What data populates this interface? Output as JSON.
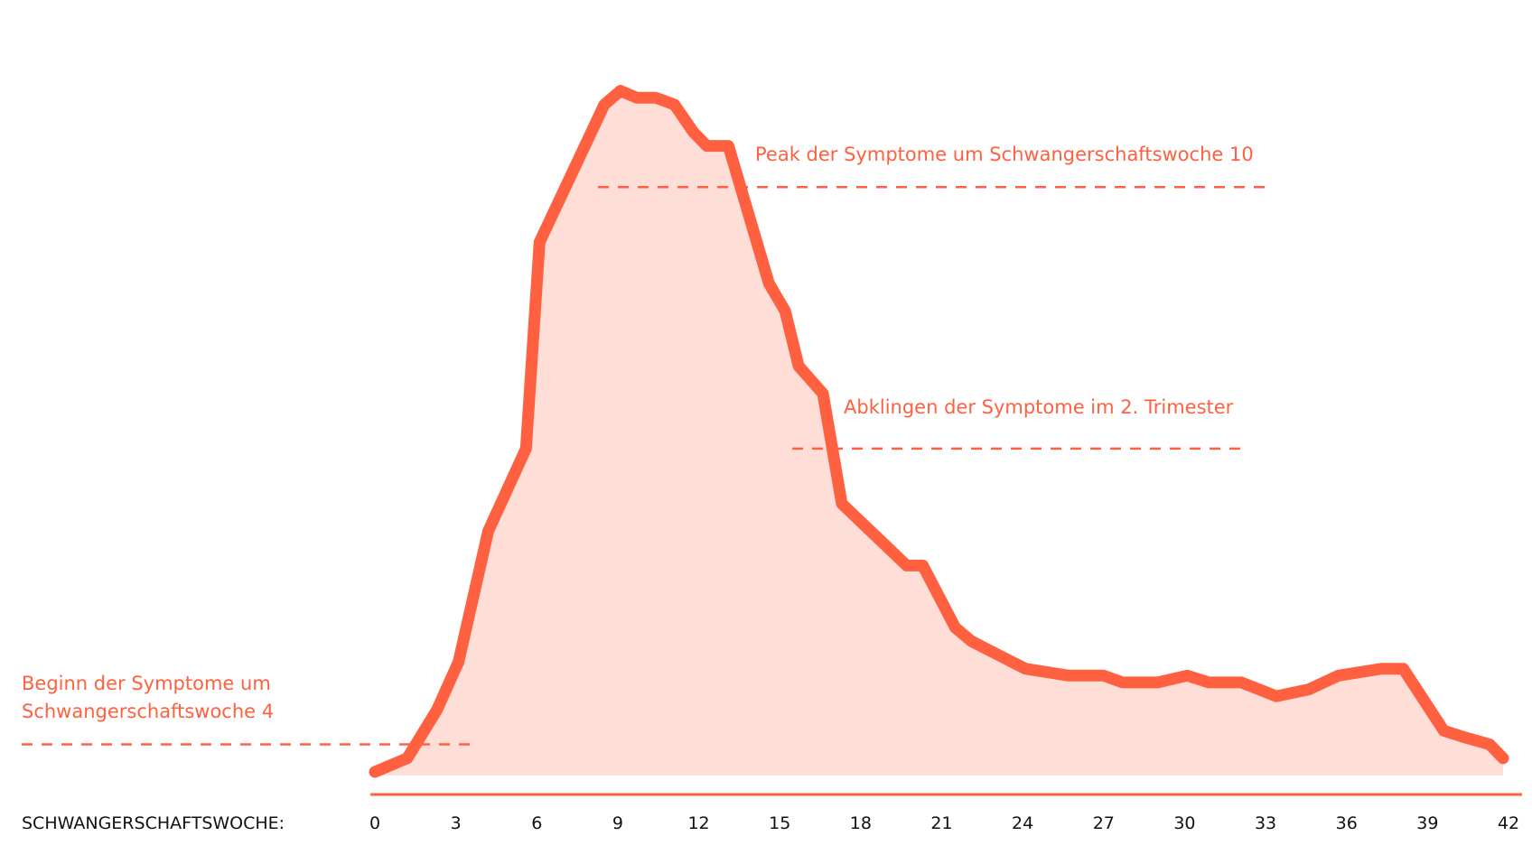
{
  "chart_data": {
    "type": "area",
    "xlabel": "SCHWANGERSCHAFTSWOCHE:",
    "xticks": [
      0,
      3,
      6,
      9,
      12,
      15,
      18,
      21,
      24,
      27,
      30,
      33,
      36,
      39,
      42
    ],
    "xlim": [
      0,
      42
    ],
    "ylim": [
      0,
      100
    ],
    "grid": false,
    "series": [
      {
        "x": [
          0,
          1.2,
          2.3,
          3.1,
          4.2,
          5.6,
          6.1,
          7.3,
          8.5,
          9.1,
          9.7,
          10.4,
          11.1,
          11.8,
          12.3,
          13.1,
          14.6,
          15.2,
          15.7,
          16.6,
          17.3,
          18.1,
          18.9,
          19.7,
          20.3,
          21.1,
          21.5,
          22.1,
          23.1,
          24.1,
          25.7,
          27.0,
          27.7,
          29.0,
          30.1,
          30.9,
          32.1,
          33.4,
          34.6,
          35.7,
          37.3,
          38.1,
          39.6,
          40.4,
          41.3,
          41.8
        ],
        "values": [
          0,
          2,
          9,
          16,
          35,
          47,
          77,
          87,
          97,
          99,
          98,
          98,
          97,
          93,
          91,
          91,
          71,
          67,
          59,
          55,
          39,
          36,
          33,
          30,
          30,
          24,
          21,
          19,
          17,
          15,
          14,
          14,
          13,
          13,
          14,
          13,
          13,
          11,
          12,
          14,
          15,
          15,
          6,
          5,
          4,
          2
        ]
      }
    ],
    "colors": {
      "line": "#ff6140",
      "fill": "#ffded7",
      "axis": "#ff6140"
    },
    "annotations": [
      {
        "lines": [
          "Peak der Symptome um Schwangerschaftswoche 10"
        ],
        "level": 85
      },
      {
        "lines": [
          "Abklingen der Symptome im 2. Trimester"
        ],
        "level": 47
      },
      {
        "lines": [
          "Beginn der Symptome um",
          "Schwangerschaftswoche 4"
        ],
        "level": 4
      }
    ]
  }
}
